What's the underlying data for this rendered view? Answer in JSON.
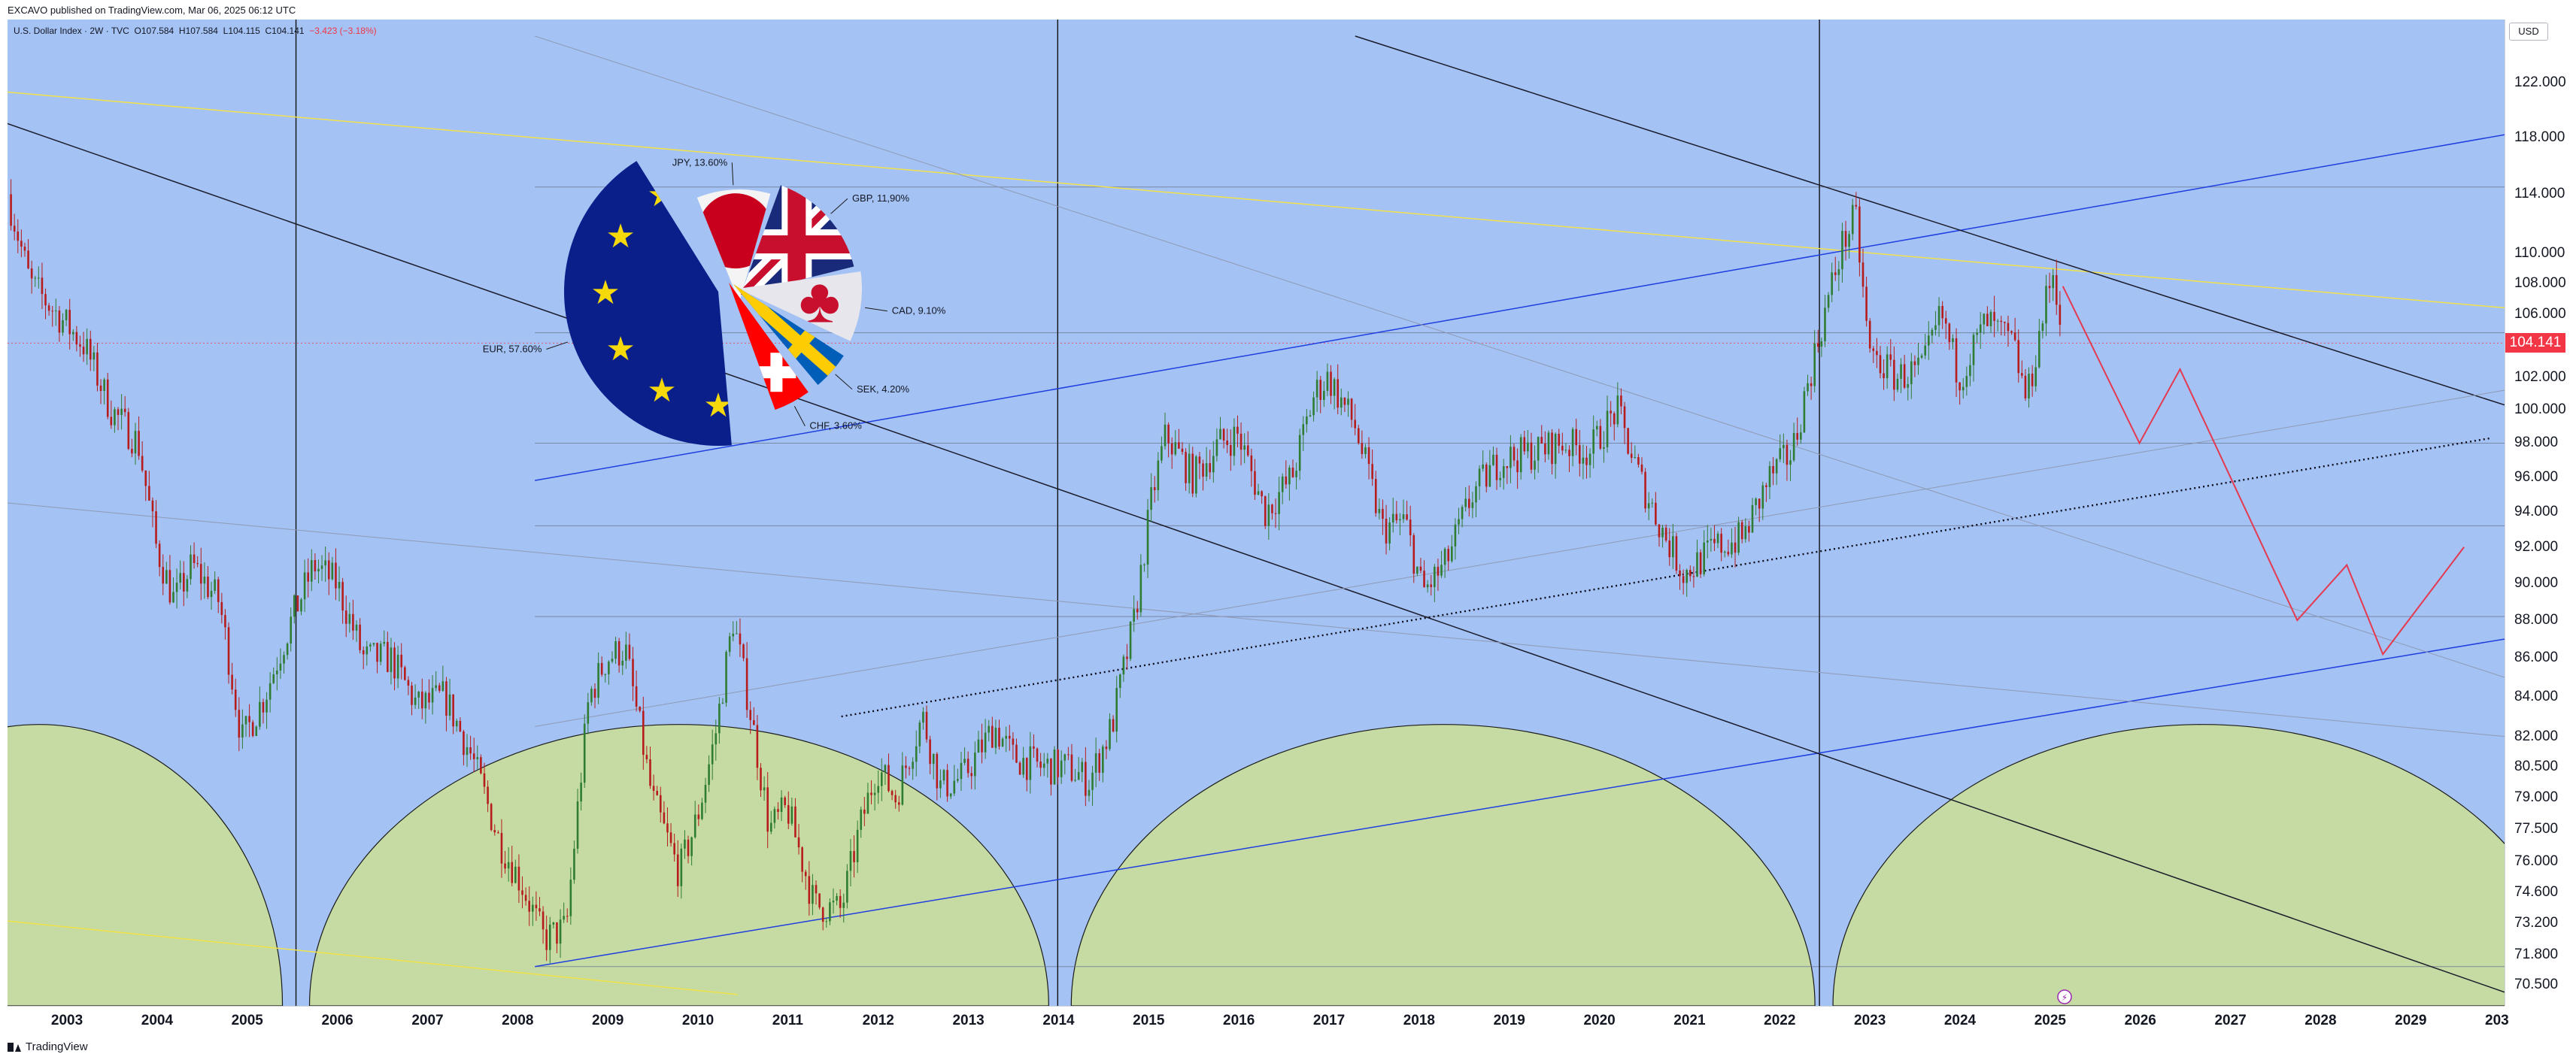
{
  "header": {
    "published": "EXCAVO published on TradingView.com, Mar 06, 2025 06:12 UTC"
  },
  "legend": {
    "symbol": "U.S. Dollar Index · 2W · TVC",
    "open_label": "O",
    "open": "107.584",
    "high_label": "H",
    "high": "107.584",
    "low_label": "L",
    "low": "104.115",
    "close_label": "C",
    "close": "104.141",
    "change": "−3.423 (−3.18%)"
  },
  "currency_badge": "USD",
  "last_price_label": "104.141",
  "footer": {
    "brand": "TradingView"
  },
  "colors": {
    "background": "#a4c2f4",
    "cycle_fill": "#c5dba3",
    "up_candle": "#2e7d32",
    "down_candle": "#b71c1c",
    "trend_blue": "#1f3ee0",
    "trend_yellow": "#f2e24a",
    "projection": "#e53950",
    "last_price": "#f23645"
  },
  "chart_data": {
    "type": "candlestick",
    "title": "U.S. Dollar Index",
    "interval": "2W",
    "y_scale": "log",
    "ylim": [
      70.0,
      125.5
    ],
    "xlim": [
      2002.35,
      2030.05
    ],
    "y_ticks": [
      "122.000",
      "118.000",
      "114.000",
      "110.000",
      "108.000",
      "106.000",
      "104.000",
      "102.000",
      "100.000",
      "98.000",
      "96.000",
      "94.000",
      "92.000",
      "90.000",
      "88.000",
      "86.000",
      "84.000",
      "82.000",
      "80.500",
      "79.000",
      "77.500",
      "76.000",
      "74.600",
      "73.200",
      "71.800",
      "70.500"
    ],
    "x_ticks": [
      "2003",
      "2004",
      "2005",
      "2006",
      "2007",
      "2008",
      "2009",
      "2010",
      "2011",
      "2012",
      "2013",
      "2014",
      "2015",
      "2016",
      "2017",
      "2018",
      "2019",
      "2020",
      "2021",
      "2022",
      "2023",
      "2024",
      "2025",
      "2026",
      "2027",
      "2028",
      "2029",
      "203"
    ],
    "price_path": [
      [
        2002.35,
        114.0
      ],
      [
        2002.6,
        108.0
      ],
      [
        2002.9,
        106.0
      ],
      [
        2003.2,
        104.0
      ],
      [
        2003.5,
        100.0
      ],
      [
        2003.8,
        98.0
      ],
      [
        2004.0,
        92.0
      ],
      [
        2004.2,
        89.0
      ],
      [
        2004.4,
        91.0
      ],
      [
        2004.7,
        89.0
      ],
      [
        2004.95,
        81.8
      ],
      [
        2005.2,
        84.0
      ],
      [
        2005.5,
        88.0
      ],
      [
        2005.75,
        91.0
      ],
      [
        2006.0,
        90.0
      ],
      [
        2006.3,
        86.0
      ],
      [
        2006.6,
        86.0
      ],
      [
        2006.9,
        83.5
      ],
      [
        2007.2,
        84.0
      ],
      [
        2007.5,
        81.0
      ],
      [
        2007.8,
        77.0
      ],
      [
        2008.05,
        75.0
      ],
      [
        2008.3,
        72.5
      ],
      [
        2008.55,
        73.0
      ],
      [
        2008.8,
        84.0
      ],
      [
        2009.0,
        86.0
      ],
      [
        2009.2,
        86.5
      ],
      [
        2009.5,
        79.0
      ],
      [
        2009.8,
        75.5
      ],
      [
        2010.0,
        78.0
      ],
      [
        2010.2,
        82.0
      ],
      [
        2010.4,
        88.0
      ],
      [
        2010.6,
        83.0
      ],
      [
        2010.8,
        77.5
      ],
      [
        2011.0,
        78.5
      ],
      [
        2011.3,
        74.0
      ],
      [
        2011.6,
        73.8
      ],
      [
        2011.8,
        77.5
      ],
      [
        2012.0,
        80.5
      ],
      [
        2012.2,
        79.0
      ],
      [
        2012.5,
        83.0
      ],
      [
        2012.7,
        79.5
      ],
      [
        2012.95,
        80.0
      ],
      [
        2013.3,
        82.5
      ],
      [
        2013.5,
        81.0
      ],
      [
        2013.8,
        80.5
      ],
      [
        2014.1,
        80.5
      ],
      [
        2014.35,
        79.8
      ],
      [
        2014.6,
        82.5
      ],
      [
        2014.85,
        88.0
      ],
      [
        2015.05,
        95.0
      ],
      [
        2015.2,
        98.5
      ],
      [
        2015.5,
        96.0
      ],
      [
        2015.8,
        98.0
      ],
      [
        2016.0,
        98.5
      ],
      [
        2016.3,
        94.0
      ],
      [
        2016.6,
        96.0
      ],
      [
        2016.85,
        101.0
      ],
      [
        2017.0,
        102.0
      ],
      [
        2017.3,
        99.0
      ],
      [
        2017.6,
        93.0
      ],
      [
        2017.85,
        93.5
      ],
      [
        2018.05,
        89.5
      ],
      [
        2018.3,
        91.0
      ],
      [
        2018.6,
        95.0
      ],
      [
        2018.9,
        97.0
      ],
      [
        2019.3,
        97.5
      ],
      [
        2019.6,
        98.0
      ],
      [
        2019.9,
        97.5
      ],
      [
        2020.2,
        100.0
      ],
      [
        2020.45,
        96.0
      ],
      [
        2020.7,
        93.0
      ],
      [
        2020.95,
        90.5
      ],
      [
        2021.3,
        92.0
      ],
      [
        2021.6,
        92.5
      ],
      [
        2021.9,
        96.0
      ],
      [
        2022.15,
        97.5
      ],
      [
        2022.4,
        103.5
      ],
      [
        2022.7,
        110.5
      ],
      [
        2022.85,
        112.5
      ],
      [
        2023.0,
        103.5
      ],
      [
        2023.3,
        102.0
      ],
      [
        2023.6,
        102.5
      ],
      [
        2023.8,
        106.0
      ],
      [
        2024.0,
        102.0
      ],
      [
        2024.3,
        105.5
      ],
      [
        2024.6,
        104.0
      ],
      [
        2024.75,
        100.5
      ],
      [
        2024.95,
        106.5
      ],
      [
        2025.05,
        109.0
      ],
      [
        2025.15,
        104.1
      ]
    ],
    "projection": {
      "color": "#e53950",
      "points": [
        [
          2025.15,
          107.8
        ],
        [
          2026.0,
          98.0
        ],
        [
          2026.45,
          102.5
        ],
        [
          2027.75,
          88.0
        ],
        [
          2028.3,
          91.0
        ],
        [
          2028.7,
          86.2
        ],
        [
          2029.6,
          92.0
        ]
      ]
    },
    "trendlines": [
      {
        "color": "#f2e24a",
        "points": [
          [
            2002.35,
            121.3
          ],
          [
            2030.05,
            106.4
          ]
        ]
      },
      {
        "color": "#f2e24a",
        "points": [
          [
            2002.35,
            73.3
          ],
          [
            2010.45,
            70.1
          ]
        ]
      },
      {
        "color": "#1f3ee0",
        "points": [
          [
            2008.2,
            95.8
          ],
          [
            2030.05,
            118.2
          ]
        ]
      },
      {
        "color": "#1f3ee0",
        "points": [
          [
            2008.2,
            71.3
          ],
          [
            2030.05,
            87.0
          ]
        ]
      },
      {
        "color": "#1b1b2a",
        "points": [
          [
            2002.35,
            119.0
          ],
          [
            2030.05,
            70.2
          ]
        ]
      },
      {
        "color": "#1b1b2a",
        "points": [
          [
            2017.3,
            125.5
          ],
          [
            2030.05,
            100.3
          ]
        ]
      },
      {
        "color": "#8f9ab3",
        "points": [
          [
            2008.2,
            125.5
          ],
          [
            2030.05,
            85.0
          ]
        ]
      },
      {
        "color": "#8f9ab3",
        "points": [
          [
            2002.35,
            94.5
          ],
          [
            2030.05,
            82.0
          ]
        ]
      },
      {
        "color": "#8f9ab3",
        "points": [
          [
            2008.2,
            82.5
          ],
          [
            2030.05,
            101.2
          ]
        ]
      }
    ],
    "dotted_trendline": {
      "points": [
        [
          2011.6,
          83.0
        ],
        [
          2029.9,
          98.3
        ]
      ]
    },
    "horizontal_levels": [
      114.5,
      104.8,
      98.0,
      93.2,
      88.2,
      71.3
    ],
    "vertical_lines": [
      2005.55,
      2014.0,
      2022.45
    ],
    "cycle_arcs": [
      [
        2000.0,
        2005.4
      ],
      [
        2005.7,
        2013.9
      ],
      [
        2014.15,
        2022.4
      ],
      [
        2022.6,
        2030.8
      ]
    ],
    "pie_chart": {
      "type": "pie",
      "slices": [
        {
          "label": "EUR, 57.60%",
          "value": 57.6,
          "flag": "eu"
        },
        {
          "label": "JPY, 13.60%",
          "value": 13.6,
          "flag": "jp"
        },
        {
          "label": "GBP, 11,90%",
          "value": 11.9,
          "flag": "gb"
        },
        {
          "label": "CAD, 9.10%",
          "value": 9.1,
          "flag": "ca"
        },
        {
          "label": "SEK, 4.20%",
          "value": 4.2,
          "flag": "se"
        },
        {
          "label": "CHF, 3.60%",
          "value": 3.6,
          "flag": "ch"
        }
      ]
    }
  }
}
